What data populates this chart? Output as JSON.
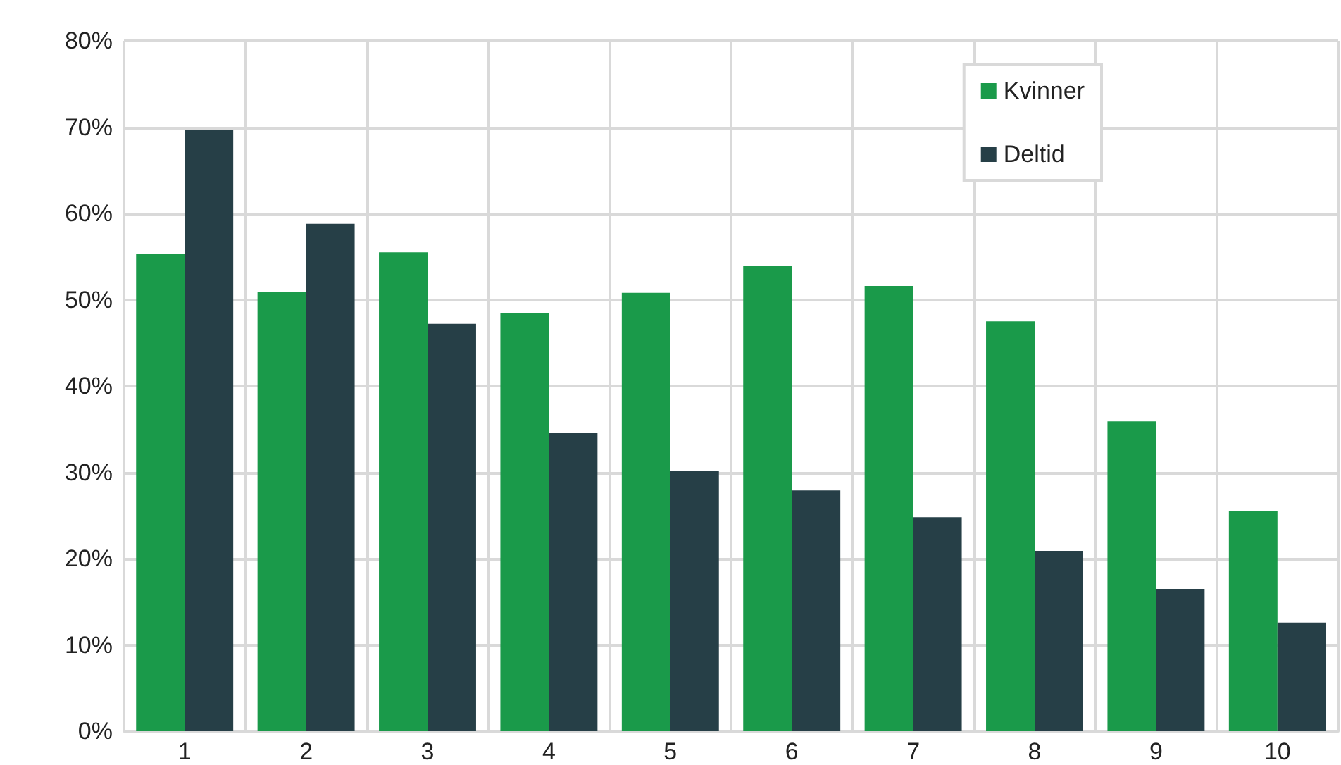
{
  "chart_data": {
    "type": "bar",
    "categories": [
      "1",
      "2",
      "3",
      "4",
      "5",
      "6",
      "7",
      "8",
      "9",
      "10"
    ],
    "series": [
      {
        "name": "Kvinner",
        "color": "#1a9a4a",
        "values": [
          55.3,
          50.9,
          55.5,
          48.5,
          50.8,
          53.9,
          51.6,
          47.5,
          35.9,
          25.5
        ]
      },
      {
        "name": "Deltid",
        "color": "#263f47",
        "values": [
          69.7,
          58.8,
          47.2,
          34.6,
          30.2,
          27.9,
          24.8,
          20.9,
          16.5,
          12.6
        ]
      }
    ],
    "ylim": [
      0,
      80
    ],
    "yticks": [
      {
        "value": 0,
        "label": "0%"
      },
      {
        "value": 10,
        "label": "10%"
      },
      {
        "value": 20,
        "label": "20%"
      },
      {
        "value": 30,
        "label": "30%"
      },
      {
        "value": 40,
        "label": "40%"
      },
      {
        "value": 50,
        "label": "50%"
      },
      {
        "value": 60,
        "label": "60%"
      },
      {
        "value": 70,
        "label": "70%"
      },
      {
        "value": 80,
        "label": "80%"
      }
    ],
    "grid": true,
    "legend": "top right"
  }
}
